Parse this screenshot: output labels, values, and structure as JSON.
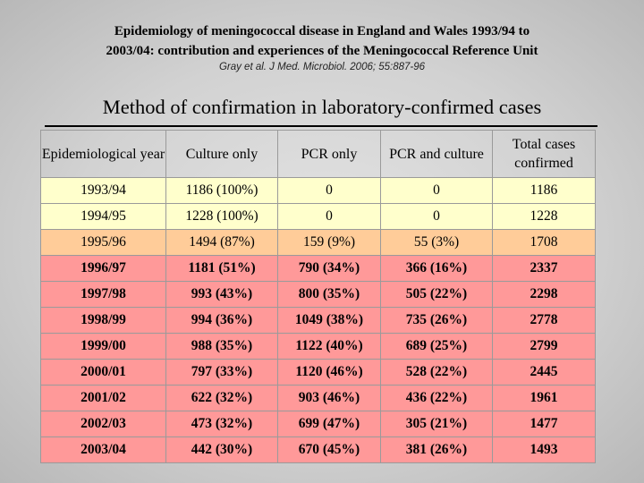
{
  "header": {
    "title_line1": "Epidemiology of meningococcal disease in England and Wales 1993/94 to",
    "title_line2": "2003/04: contribution and experiences of the Meningococcal Reference Unit",
    "citation": "Gray et al. J Med. Microbiol. 2006; 55:887-96",
    "subtitle": "Method of confirmation in laboratory-confirmed cases"
  },
  "table": {
    "columns": [
      "Epidemiological year",
      "Culture only",
      "PCR only",
      "PCR and culture",
      "Total cases confirmed"
    ],
    "row_colors": {
      "yellow": "#ffffcc",
      "peach": "#ffcc99",
      "pink": "#ff9999"
    },
    "rows": [
      {
        "style": "yellow",
        "cells": [
          "1993/94",
          "1186 (100%)",
          "0",
          "0",
          "1186"
        ]
      },
      {
        "style": "yellow",
        "cells": [
          "1994/95",
          "1228 (100%)",
          "0",
          "0",
          "1228"
        ]
      },
      {
        "style": "peach",
        "cells": [
          "1995/96",
          "1494 (87%)",
          "159 (9%)",
          "55 (3%)",
          "1708"
        ]
      },
      {
        "style": "pink",
        "cells": [
          "1996/97",
          "1181 (51%)",
          "790 (34%)",
          "366 (16%)",
          "2337"
        ]
      },
      {
        "style": "pink",
        "cells": [
          "1997/98",
          "993 (43%)",
          "800 (35%)",
          "505 (22%)",
          "2298"
        ]
      },
      {
        "style": "pink",
        "cells": [
          "1998/99",
          "994 (36%)",
          "1049 (38%)",
          "735 (26%)",
          "2778"
        ]
      },
      {
        "style": "pink",
        "cells": [
          "1999/00",
          "988 (35%)",
          "1122 (40%)",
          "689 (25%)",
          "2799"
        ]
      },
      {
        "style": "pink",
        "cells": [
          "2000/01",
          "797 (33%)",
          "1120 (46%)",
          "528 (22%)",
          "2445"
        ]
      },
      {
        "style": "pink",
        "cells": [
          "2001/02",
          "622 (32%)",
          "903 (46%)",
          "436 (22%)",
          "1961"
        ]
      },
      {
        "style": "pink",
        "cells": [
          "2002/03",
          "473 (32%)",
          "699 (47%)",
          "305 (21%)",
          "1477"
        ]
      },
      {
        "style": "pink",
        "cells": [
          "2003/04",
          "442 (30%)",
          "670 (45%)",
          "381 (26%)",
          "1493"
        ]
      }
    ]
  }
}
